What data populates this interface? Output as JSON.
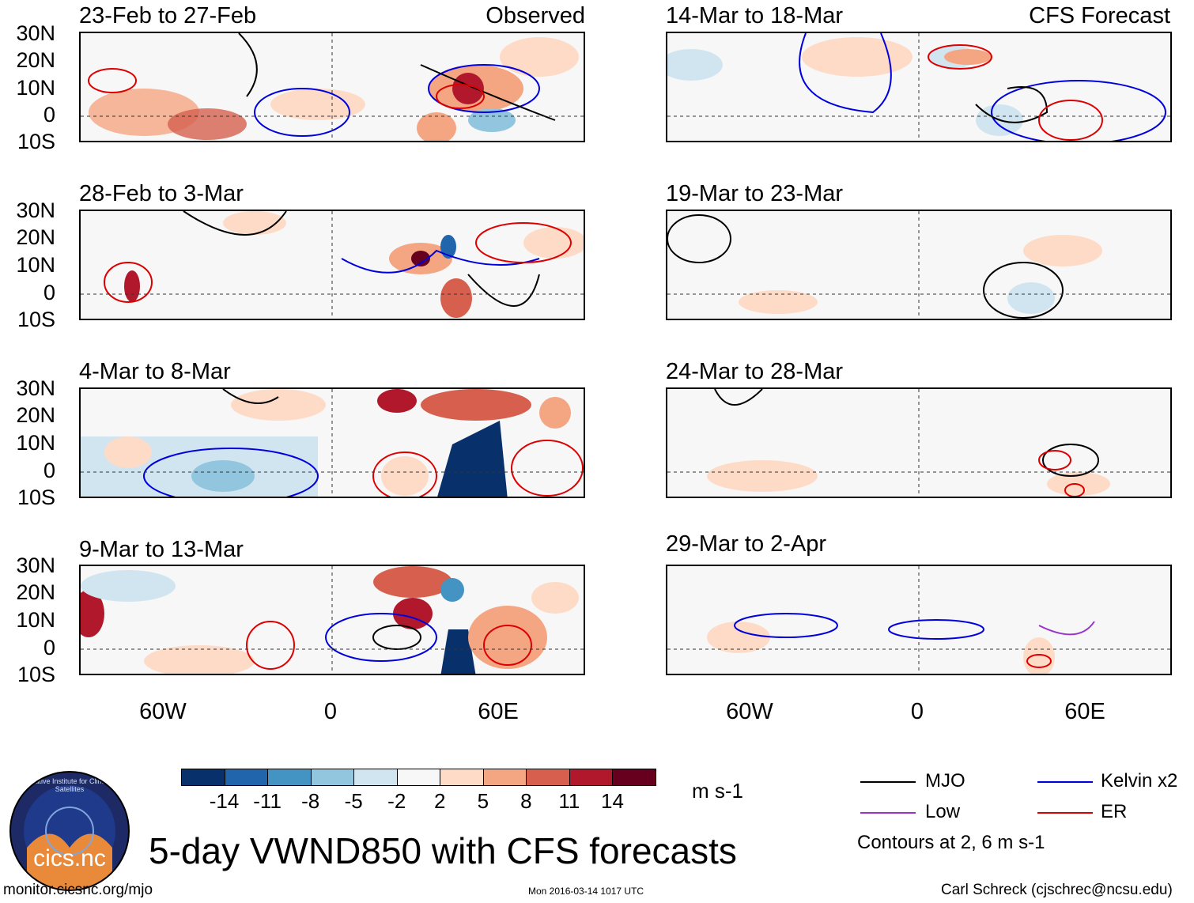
{
  "left_tag": "Observed",
  "right_tag": "CFS Forecast",
  "panels_left": [
    {
      "title": "23-Feb to 27-Feb"
    },
    {
      "title": "28-Feb to 3-Mar"
    },
    {
      "title": "4-Mar to 8-Mar"
    },
    {
      "title": "9-Mar to 13-Mar"
    }
  ],
  "panels_right": [
    {
      "title": "14-Mar to 18-Mar"
    },
    {
      "title": "19-Mar to 23-Mar"
    },
    {
      "title": "24-Mar to 28-Mar"
    },
    {
      "title": "29-Mar to 2-Apr"
    }
  ],
  "lat_labels": [
    "30N",
    "20N",
    "10N",
    "0",
    "10S"
  ],
  "lon_labels": [
    "60W",
    "0",
    "60E"
  ],
  "colorbar": {
    "labels": [
      "-14",
      "-11",
      "-8",
      "-5",
      "-2",
      "2",
      "5",
      "8",
      "11",
      "14"
    ],
    "colors": [
      "#08306b",
      "#2166ac",
      "#4393c3",
      "#92c5de",
      "#d1e5f0",
      "#f7f7f7",
      "#fddbc7",
      "#f4a582",
      "#d6604d",
      "#b2182b",
      "#67001f"
    ],
    "units": "m s-1"
  },
  "legend": {
    "mjo": "MJO",
    "kelvin": "Kelvin x2",
    "low": "Low",
    "er": "ER",
    "contours_note": "Contours at 2, 6 m s-1",
    "colors": {
      "mjo": "#000000",
      "kelvin": "#0000dd",
      "low": "#9933cc",
      "er": "#dd0000"
    }
  },
  "main_title": "5-day VWND850 with CFS forecasts",
  "logo_text": "cics.nc",
  "logo_ring_text": "Cooperative Institute for Climate and Satellites",
  "footer": {
    "url": "monitor.cicsnc.org/mjo",
    "timestamp": "Mon 2016-03-14 1017 UTC",
    "author": "Carl Schreck (cjschrec@ncsu.edu)"
  }
}
